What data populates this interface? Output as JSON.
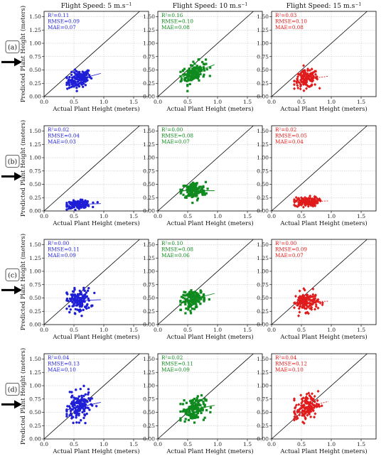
{
  "figure": {
    "column_titles": [
      {
        "speed": "Flight Speed: 5 m.s",
        "unit_sup": "−1"
      },
      {
        "speed": "Flight Speed: 10 m.s",
        "unit_sup": "−1"
      },
      {
        "speed": "Flight Speed: 15 m.s",
        "unit_sup": "−1"
      }
    ],
    "row_labels": [
      "(a)",
      "(b)",
      "(c)",
      "(d)"
    ],
    "xlabel": "Actual Plant Height (meters)",
    "ylabel": "Predicted Plant Height (meters)",
    "column_colors": [
      "#1f1fd6",
      "#0f8a1f",
      "#e01b1b"
    ],
    "column_markers": [
      "circle",
      "square",
      "diamond"
    ]
  },
  "chart_data": [
    {
      "type": "scatter",
      "row": "(a)",
      "col": 0,
      "stats": [
        "R²=0.11",
        "RMSE=0.09",
        "MAE=0.07"
      ],
      "xlim": [
        0,
        1.75
      ],
      "ylim": [
        0,
        1.6
      ],
      "xticks": [
        "0.0",
        "0.5",
        "1.0",
        "1.5"
      ],
      "yticks": [
        "0.00",
        "0.25",
        "0.50",
        "0.75",
        "1.00",
        "1.25",
        "1.50"
      ],
      "x_mean": 0.58,
      "x_sd": 0.1,
      "x_range": [
        0.38,
        0.95
      ],
      "fit": {
        "slope": 0.3,
        "intercept": 0.15
      },
      "y_sd": 0.08,
      "n": 140
    },
    {
      "type": "scatter",
      "row": "(a)",
      "col": 1,
      "stats": [
        "R²=0.16",
        "RMSE=0.10",
        "MAE=0.08"
      ],
      "xlim": [
        0,
        1.75
      ],
      "ylim": [
        0,
        1.6
      ],
      "xticks": [
        "0.0",
        "0.5",
        "1.0",
        "1.5"
      ],
      "yticks": [
        "0.00",
        "0.25",
        "0.50",
        "0.75",
        "1.00",
        "1.25",
        "1.50"
      ],
      "x_mean": 0.6,
      "x_sd": 0.1,
      "x_range": [
        0.38,
        0.95
      ],
      "fit": {
        "slope": 0.42,
        "intercept": 0.2
      },
      "y_sd": 0.09,
      "n": 140
    },
    {
      "type": "scatter",
      "row": "(a)",
      "col": 2,
      "stats": [
        "R²=0.03",
        "RMSE=0.10",
        "MAE=0.08"
      ],
      "xlim": [
        0,
        1.75
      ],
      "ylim": [
        0,
        1.6
      ],
      "xticks": [
        "0.0",
        "0.5",
        "1.0",
        "1.5"
      ],
      "yticks": [
        "0.00",
        "0.25",
        "0.50",
        "0.75",
        "1.00",
        "1.25",
        "1.50"
      ],
      "x_mean": 0.58,
      "x_sd": 0.1,
      "x_range": [
        0.38,
        0.95
      ],
      "fit": {
        "slope": 0.15,
        "intercept": 0.24
      },
      "y_sd": 0.08,
      "n": 140
    },
    {
      "type": "scatter",
      "row": "(b)",
      "col": 0,
      "stats": [
        "R²=0.02",
        "RMSE=0.04",
        "MAE=0.03"
      ],
      "xlim": [
        0,
        1.75
      ],
      "ylim": [
        0,
        1.6
      ],
      "xticks": [
        "0.0",
        "0.5",
        "1.0",
        "1.5"
      ],
      "yticks": [
        "0.00",
        "0.25",
        "0.50",
        "0.75",
        "1.00",
        "1.25",
        "1.50"
      ],
      "x_mean": 0.58,
      "x_sd": 0.1,
      "x_range": [
        0.38,
        0.95
      ],
      "fit": {
        "slope": 0.04,
        "intercept": 0.1
      },
      "y_sd": 0.035,
      "n": 140
    },
    {
      "type": "scatter",
      "row": "(b)",
      "col": 1,
      "stats": [
        "R²=0.00",
        "RMSE=0.08",
        "MAE=0.07"
      ],
      "xlim": [
        0,
        1.75
      ],
      "ylim": [
        0,
        1.6
      ],
      "xticks": [
        "0.0",
        "0.5",
        "1.0",
        "1.5"
      ],
      "yticks": [
        "0.00",
        "0.25",
        "0.50",
        "0.75",
        "1.00",
        "1.25",
        "1.50"
      ],
      "x_mean": 0.6,
      "x_sd": 0.1,
      "x_range": [
        0.38,
        0.95
      ],
      "fit": {
        "slope": 0.0,
        "intercept": 0.38
      },
      "y_sd": 0.08,
      "n": 140
    },
    {
      "type": "scatter",
      "row": "(b)",
      "col": 2,
      "stats": [
        "R²=0.02",
        "RMSE=0.05",
        "MAE=0.04"
      ],
      "xlim": [
        0,
        1.75
      ],
      "ylim": [
        0,
        1.6
      ],
      "xticks": [
        "0.0",
        "0.5",
        "1.0",
        "1.5"
      ],
      "yticks": [
        "0.00",
        "0.25",
        "0.50",
        "0.75",
        "1.00",
        "1.25",
        "1.50"
      ],
      "x_mean": 0.58,
      "x_sd": 0.1,
      "x_range": [
        0.38,
        0.95
      ],
      "fit": {
        "slope": 0.04,
        "intercept": 0.15
      },
      "y_sd": 0.045,
      "n": 140
    },
    {
      "type": "scatter",
      "row": "(c)",
      "col": 0,
      "stats": [
        "R²=0.00",
        "RMSE=0.11",
        "MAE=0.09"
      ],
      "xlim": [
        0,
        1.75
      ],
      "ylim": [
        0,
        1.6
      ],
      "xticks": [
        "0.0",
        "0.5",
        "1.0",
        "1.5"
      ],
      "yticks": [
        "0.00",
        "0.25",
        "0.50",
        "0.75",
        "1.00",
        "1.25",
        "1.50"
      ],
      "x_mean": 0.58,
      "x_sd": 0.1,
      "x_range": [
        0.38,
        0.95
      ],
      "fit": {
        "slope": 0.05,
        "intercept": 0.42
      },
      "y_sd": 0.11,
      "n": 140
    },
    {
      "type": "scatter",
      "row": "(c)",
      "col": 1,
      "stats": [
        "R²=0.10",
        "RMSE=0.08",
        "MAE=0.06"
      ],
      "xlim": [
        0,
        1.75
      ],
      "ylim": [
        0,
        1.6
      ],
      "xticks": [
        "0.0",
        "0.5",
        "1.0",
        "1.5"
      ],
      "yticks": [
        "0.00",
        "0.25",
        "0.50",
        "0.75",
        "1.00",
        "1.25",
        "1.50"
      ],
      "x_mean": 0.6,
      "x_sd": 0.1,
      "x_range": [
        0.38,
        0.95
      ],
      "fit": {
        "slope": 0.3,
        "intercept": 0.3
      },
      "y_sd": 0.08,
      "n": 140
    },
    {
      "type": "scatter",
      "row": "(c)",
      "col": 2,
      "stats": [
        "R²=0.00",
        "RMSE=0.09",
        "MAE=0.07"
      ],
      "xlim": [
        0,
        1.75
      ],
      "ylim": [
        0,
        1.6
      ],
      "xticks": [
        "0.0",
        "0.5",
        "1.0",
        "1.5"
      ],
      "yticks": [
        "0.00",
        "0.25",
        "0.50",
        "0.75",
        "1.00",
        "1.25",
        "1.50"
      ],
      "x_mean": 0.58,
      "x_sd": 0.1,
      "x_range": [
        0.38,
        0.95
      ],
      "fit": {
        "slope": 0.02,
        "intercept": 0.42
      },
      "y_sd": 0.09,
      "n": 140
    },
    {
      "type": "scatter",
      "row": "(d)",
      "col": 0,
      "stats": [
        "R²=0.04",
        "RMSE=0.13",
        "MAE=0.10"
      ],
      "xlim": [
        0,
        1.75
      ],
      "ylim": [
        0,
        1.6
      ],
      "xticks": [
        "0.0",
        "0.5",
        "1.0",
        "1.5"
      ],
      "yticks": [
        "0.00",
        "0.25",
        "0.50",
        "0.75",
        "1.00",
        "1.25",
        "1.50"
      ],
      "x_mean": 0.58,
      "x_sd": 0.1,
      "x_range": [
        0.38,
        0.95
      ],
      "fit": {
        "slope": 0.25,
        "intercept": 0.45
      },
      "y_sd": 0.13,
      "n": 140
    },
    {
      "type": "scatter",
      "row": "(d)",
      "col": 1,
      "stats": [
        "R²=0.02",
        "RMSE=0.11",
        "MAE=0.09"
      ],
      "xlim": [
        0,
        1.75
      ],
      "ylim": [
        0,
        1.6
      ],
      "xticks": [
        "0.0",
        "0.5",
        "1.0",
        "1.5"
      ],
      "yticks": [
        "0.00",
        "0.25",
        "0.50",
        "0.75",
        "1.00",
        "1.25",
        "1.50"
      ],
      "x_mean": 0.6,
      "x_sd": 0.1,
      "x_range": [
        0.38,
        0.95
      ],
      "fit": {
        "slope": 0.2,
        "intercept": 0.44
      },
      "y_sd": 0.11,
      "n": 140
    },
    {
      "type": "scatter",
      "row": "(d)",
      "col": 2,
      "stats": [
        "R²=0.04",
        "RMSE=0.12",
        "MAE=0.10"
      ],
      "xlim": [
        0,
        1.75
      ],
      "ylim": [
        0,
        1.6
      ],
      "xticks": [
        "0.0",
        "0.5",
        "1.0",
        "1.5"
      ],
      "yticks": [
        "0.00",
        "0.25",
        "0.50",
        "0.75",
        "1.00",
        "1.25",
        "1.50"
      ],
      "x_mean": 0.58,
      "x_sd": 0.1,
      "x_range": [
        0.38,
        0.95
      ],
      "fit": {
        "slope": 0.3,
        "intercept": 0.42
      },
      "y_sd": 0.12,
      "n": 140
    }
  ]
}
